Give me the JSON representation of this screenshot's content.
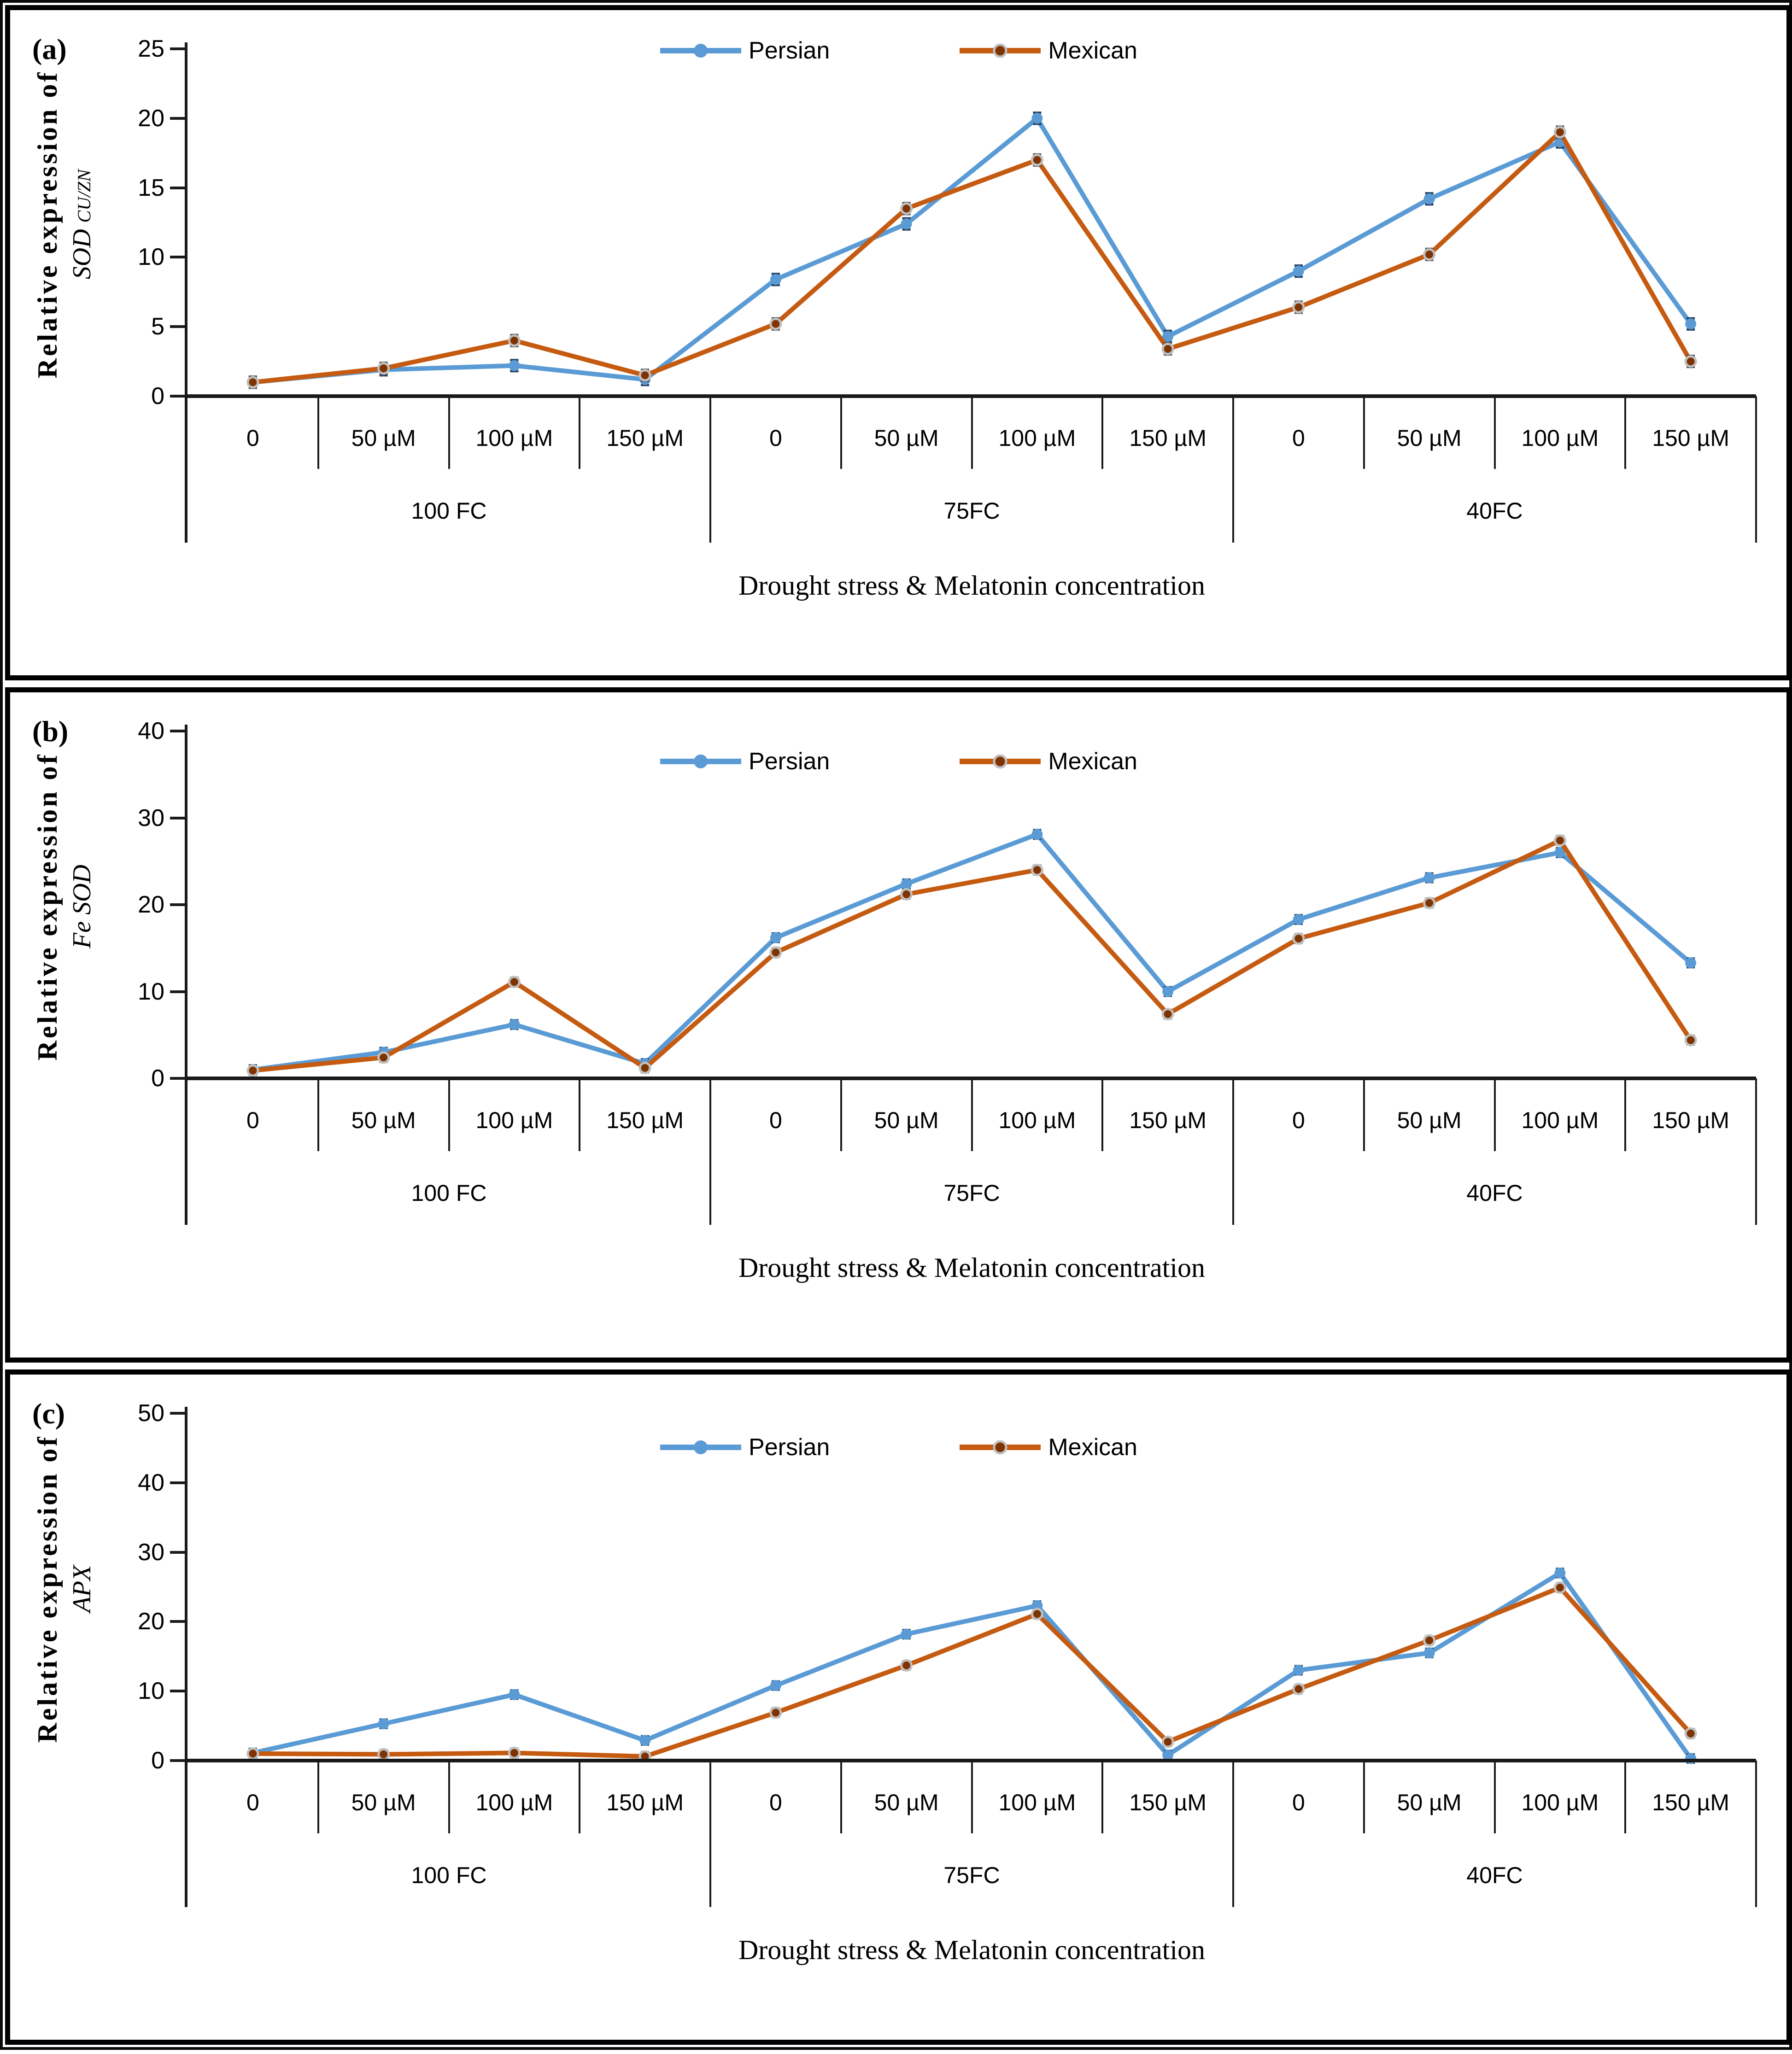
{
  "figure": {
    "x_title": "Drought stress & Melatonin concentration",
    "ylabel_prefix": "Relative expression of",
    "legend": {
      "persian_label": "Persian",
      "mexican_label": "Mexican"
    },
    "colors": {
      "persian_line": "#5B9BD5",
      "mexican_line": "#C55A11",
      "mexican_marker_fill": "#7F3300",
      "mexican_marker_ring": "#BFBFBF",
      "persian_error": "#24425f",
      "mexican_error": "#555555",
      "axis": "#1a1a1a"
    }
  },
  "chart_data": [
    {
      "type": "line",
      "panel_label": "(a)",
      "ylabel_prefix": "Relative expression of",
      "gene": "SOD",
      "gene_sub": "CU/ZN",
      "xlabel": "Drought stress & Melatonin concentration",
      "ylim": [
        0,
        25
      ],
      "ytick_step": 5,
      "grid": false,
      "legend_position": "top-center",
      "categories": [
        "0",
        "50 µM",
        "100 µM",
        "150 µM",
        "0",
        "50 µM",
        "100 µM",
        "150 µM",
        "0",
        "50 µM",
        "100 µM",
        "150 µM"
      ],
      "groups": [
        {
          "label": "100 FC",
          "span": 4
        },
        {
          "label": "75FC",
          "span": 4
        },
        {
          "label": "40FC",
          "span": 4
        }
      ],
      "error_bar": 0.4,
      "series": [
        {
          "name": "Persian",
          "values": [
            1.0,
            1.9,
            2.2,
            1.2,
            8.4,
            12.4,
            20.0,
            4.3,
            9.0,
            14.2,
            18.3,
            5.2
          ]
        },
        {
          "name": "Mexican",
          "values": [
            1.0,
            2.0,
            4.0,
            1.5,
            5.2,
            13.5,
            17.0,
            3.4,
            6.4,
            10.2,
            19.0,
            2.5
          ]
        }
      ]
    },
    {
      "type": "line",
      "panel_label": "(b)",
      "ylabel_prefix": "Relative expression of",
      "gene": "Fe SOD",
      "gene_sub": "",
      "xlabel": "Drought stress & Melatonin concentration",
      "ylim": [
        0,
        40
      ],
      "ytick_step": 10,
      "grid": false,
      "legend_position": "top-center",
      "categories": [
        "0",
        "50 µM",
        "100 µM",
        "150 µM",
        "0",
        "50 µM",
        "100 µM",
        "150 µM",
        "0",
        "50 µM",
        "100 µM",
        "150 µM"
      ],
      "groups": [
        {
          "label": "100 FC",
          "span": 4
        },
        {
          "label": "75FC",
          "span": 4
        },
        {
          "label": "40FC",
          "span": 4
        }
      ],
      "error_bar": 0.5,
      "series": [
        {
          "name": "Persian",
          "values": [
            1.0,
            3.0,
            6.2,
            1.7,
            16.2,
            22.4,
            28.1,
            10.0,
            18.3,
            23.1,
            26.0,
            13.3
          ]
        },
        {
          "name": "Mexican",
          "values": [
            0.9,
            2.4,
            11.1,
            1.2,
            14.5,
            21.2,
            24.0,
            7.4,
            16.1,
            20.2,
            27.4,
            4.4
          ]
        }
      ]
    },
    {
      "type": "line",
      "panel_label": "(c)",
      "ylabel_prefix": "Relative expression of",
      "gene": "APX",
      "gene_sub": "",
      "xlabel": "Drought stress & Melatonin concentration",
      "ylim": [
        0,
        50
      ],
      "ytick_step": 10,
      "grid": false,
      "legend_position": "top-center",
      "categories": [
        "0",
        "50 µM",
        "100 µM",
        "150 µM",
        "0",
        "50 µM",
        "100 µM",
        "150 µM",
        "0",
        "50 µM",
        "100 µM",
        "150 µM"
      ],
      "groups": [
        {
          "label": "100 FC",
          "span": 4
        },
        {
          "label": "75FC",
          "span": 4
        },
        {
          "label": "40FC",
          "span": 4
        }
      ],
      "error_bar": 0.6,
      "series": [
        {
          "name": "Persian",
          "values": [
            1.1,
            5.3,
            9.5,
            2.9,
            10.8,
            18.2,
            22.3,
            0.8,
            13.0,
            15.5,
            27.0,
            0.3
          ]
        },
        {
          "name": "Mexican",
          "values": [
            1.0,
            0.9,
            1.1,
            0.6,
            6.9,
            13.7,
            21.1,
            2.7,
            10.3,
            17.3,
            24.9,
            3.9
          ]
        }
      ]
    }
  ]
}
